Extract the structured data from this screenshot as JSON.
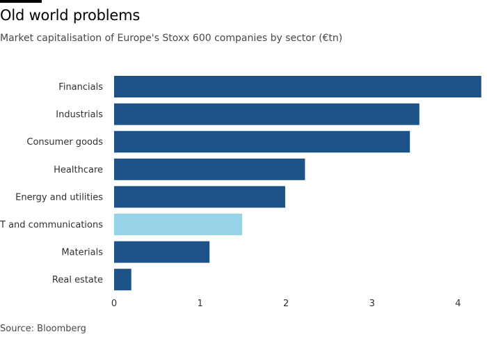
{
  "header": {
    "title": "Old world problems",
    "subtitle": "Market capitalisation of Europe's Stoxx 600 companies by sector (€tn)"
  },
  "footer": {
    "source": "Source: Bloomberg"
  },
  "colors": {
    "bar": "#1d5287",
    "highlight": "#96d3e6",
    "text": "#33302e"
  },
  "chart_data": {
    "type": "bar",
    "orientation": "horizontal",
    "title": "Old world problems",
    "subtitle": "Market capitalisation of Europe's Stoxx 600 companies by sector (€tn)",
    "categories": [
      "Financials",
      "Industrials",
      "Consumer goods",
      "Healthcare",
      "Energy and utilities",
      "IT and communications",
      "Materials",
      "Real estate"
    ],
    "values": [
      4.27,
      3.55,
      3.44,
      2.22,
      1.99,
      1.49,
      1.11,
      0.2
    ],
    "highlight": [
      "IT and communications"
    ],
    "xlim": [
      0,
      4.27
    ],
    "xticks": [
      "0",
      "1",
      "2",
      "3",
      "4"
    ],
    "grid": false,
    "legend": "none"
  }
}
